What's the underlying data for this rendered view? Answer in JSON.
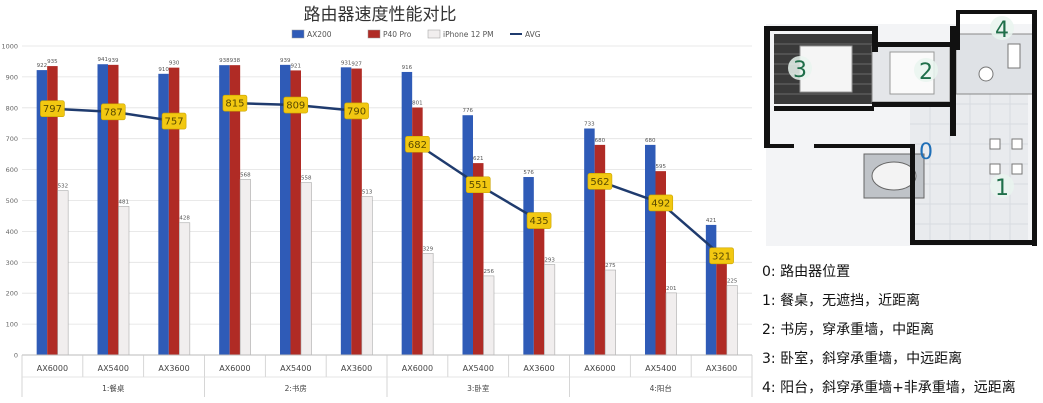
{
  "chart_data": {
    "type": "bar",
    "title": "路由器速度性能对比",
    "groups": [
      "1:餐桌",
      "2:书房",
      "3:卧室",
      "4:阳台"
    ],
    "categories": [
      "AX6000",
      "AX5400",
      "AX3600",
      "AX6000",
      "AX5400",
      "AX3600",
      "AX6000",
      "AX5400",
      "AX3600",
      "AX6000",
      "AX5400",
      "AX3600"
    ],
    "series": [
      {
        "name": "AX200",
        "type": "bar",
        "color": "#2f5bb7",
        "values": [
          922,
          941,
          910,
          938,
          939,
          931,
          916,
          776,
          576,
          733,
          680,
          421
        ]
      },
      {
        "name": "P40 Pro",
        "type": "bar",
        "color": "#b02b25",
        "values": [
          935,
          939,
          930,
          938,
          921,
          927,
          801,
          621,
          435,
          680,
          595,
          301
        ]
      },
      {
        "name": "iPhone 12 PM",
        "type": "bar",
        "color": "#f1eeee",
        "values": [
          532,
          481,
          428,
          568,
          558,
          513,
          329,
          256,
          293,
          275,
          201,
          225
        ]
      },
      {
        "name": "AVG",
        "type": "line",
        "color": "#1f3b6e",
        "values": [
          797,
          787,
          757,
          815,
          809,
          790,
          682,
          551,
          435,
          562,
          492,
          321
        ]
      }
    ],
    "avg_labels": [
      "797",
      "787",
      "757",
      "815",
      "809",
      "790",
      "682",
      "551",
      "435",
      "562",
      "492",
      "321"
    ],
    "bar_labels": {
      "ax200": [
        "922",
        "941",
        "910",
        "938",
        "939",
        "931",
        "916",
        "776",
        "576",
        "733",
        "680",
        "421"
      ],
      "p40": [
        "935",
        "939",
        "930",
        "938",
        "921",
        "927",
        "801",
        "621",
        "435",
        "680",
        "595",
        "301"
      ],
      "iphone": [
        "532",
        "481",
        "428",
        "568",
        "558",
        "513",
        "329",
        "256",
        "293",
        "275",
        "201",
        "225"
      ]
    },
    "ylim": [
      0,
      1000
    ],
    "yticks": [
      "0",
      "100",
      "200",
      "300",
      "400",
      "500",
      "600",
      "700",
      "800",
      "900",
      "1000"
    ],
    "grid": true,
    "legend_position": "top"
  },
  "floorplan": {
    "markers": [
      "0",
      "1",
      "2",
      "3",
      "4"
    ]
  },
  "notes": [
    "0: 路由器位置",
    "1: 餐桌，无遮挡，近距离",
    "2: 书房，穿承重墙，中距离",
    "3: 卧室，斜穿承重墙，中远距离",
    "4: 阳台，斜穿承重墙+非承重墙，远距离"
  ],
  "colors": {
    "ax200": "#2f5bb7",
    "p40": "#b02b25",
    "iphone": "#f1eeee",
    "avg": "#1f3b6e",
    "avg_label_bg": "#f2c811",
    "marker": "#1f6f4a"
  }
}
